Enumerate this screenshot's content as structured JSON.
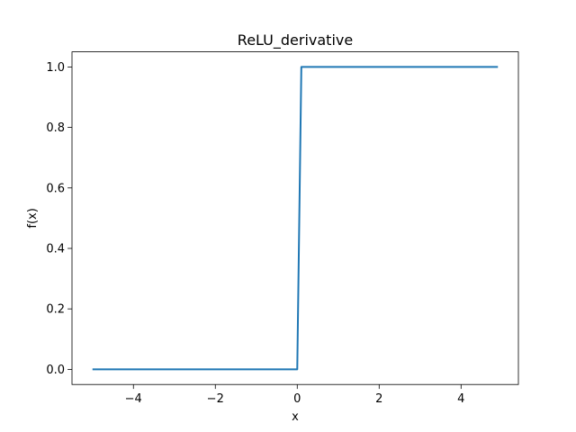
{
  "chart_data": {
    "type": "line",
    "title": "ReLU_derivative",
    "xlabel": "x",
    "ylabel": "f(x)",
    "xlim": [
      -5.5,
      5.4
    ],
    "ylim": [
      -0.05,
      1.05
    ],
    "grid": false,
    "xticks": [
      -4,
      -2,
      0,
      2,
      4
    ],
    "xtick_labels": [
      "−4",
      "−2",
      "0",
      "2",
      "4"
    ],
    "yticks": [
      0.0,
      0.2,
      0.4,
      0.6,
      0.8,
      1.0
    ],
    "ytick_labels": [
      "0.0",
      "0.2",
      "0.4",
      "0.6",
      "0.8",
      "1.0"
    ],
    "series": [
      {
        "color": "#1f77b4",
        "x": [
          -5.0,
          0.0,
          0.1,
          4.9
        ],
        "y": [
          0.0,
          0.0,
          1.0,
          1.0
        ]
      }
    ]
  }
}
